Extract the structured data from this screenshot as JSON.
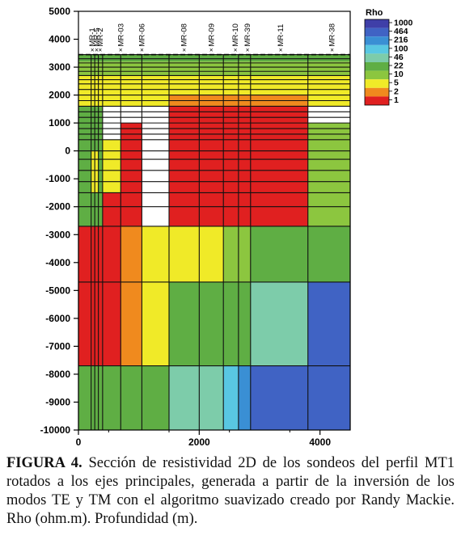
{
  "chart_data": {
    "type": "heatmap",
    "title": "",
    "xlabel": "",
    "ylabel": "",
    "xlim": [
      0,
      4500
    ],
    "ylim": [
      -10000,
      5000
    ],
    "x_ticks": [
      0,
      2000,
      4000
    ],
    "x_tick_labels": [
      "0",
      "2000",
      "4000"
    ],
    "y_ticks": [
      5000,
      4000,
      3000,
      2000,
      1000,
      0,
      -1000,
      -2000,
      -3000,
      -4000,
      -5000,
      -6000,
      -7000,
      -8000,
      -9000,
      -10000
    ],
    "y_tick_labels": [
      "5000",
      "4000",
      "3000",
      "2000",
      "1000",
      "0",
      "-1000",
      "-2000",
      "-3000",
      "-4000",
      "-5000",
      "-6000",
      "-7000",
      "-8000",
      "-9000",
      "-10000"
    ],
    "surface_elevation": 3450,
    "legend": {
      "title": "Rho",
      "position": "top-right",
      "labels": [
        "1000",
        "464",
        "216",
        "100",
        "46",
        "22",
        "10",
        "5",
        "2",
        "1"
      ],
      "colors": [
        "#3f3fa8",
        "#4063c4",
        "#3a8fd4",
        "#59c7e2",
        "#7dccaa",
        "#5fae44",
        "#8cc63f",
        "#f0ea28",
        "#f08a1e",
        "#e02020"
      ]
    },
    "stations": [
      {
        "name": "MR-1",
        "x": 230
      },
      {
        "name": "MR-5",
        "x": 300
      },
      {
        "name": "MR-2",
        "x": 360
      },
      {
        "name": "MR-03",
        "x": 700
      },
      {
        "name": "MR-06",
        "x": 1050
      },
      {
        "name": "MR-08",
        "x": 1750
      },
      {
        "name": "MR-09",
        "x": 2200
      },
      {
        "name": "MR-10",
        "x": 2600
      },
      {
        "name": "MR-39",
        "x": 2800
      },
      {
        "name": "MR-11",
        "x": 3350
      },
      {
        "name": "MR-38",
        "x": 4200
      }
    ],
    "column_edges": [
      0,
      210,
      270,
      330,
      400,
      700,
      1050,
      1500,
      2000,
      2400,
      2650,
      2850,
      3800,
      4500
    ],
    "row_edges": [
      3450,
      3300,
      3150,
      3000,
      2850,
      2700,
      2550,
      2400,
      2200,
      2000,
      1800,
      1600,
      1400,
      1200,
      1000,
      800,
      600,
      400,
      0,
      -300,
      -700,
      -1100,
      -1500,
      -2000,
      -2700,
      -4700,
      -7700,
      -10000
    ],
    "rho_zones": [
      {
        "x": [
          0,
          4500
        ],
        "y": [
          3200,
          3450
        ],
        "rho": 22
      },
      {
        "x": [
          0,
          4500
        ],
        "y": [
          2700,
          3200
        ],
        "rho": 10
      },
      {
        "x": [
          0,
          4500
        ],
        "y": [
          1600,
          2700
        ],
        "rho": 5
      },
      {
        "x": [
          1500,
          3800
        ],
        "y": [
          1600,
          2000
        ],
        "rho": 2
      },
      {
        "x": [
          1500,
          3800
        ],
        "y": [
          -2700,
          1600
        ],
        "rho": 1
      },
      {
        "x": [
          0,
          400
        ],
        "y": [
          -2700,
          1600
        ],
        "rho": 22
      },
      {
        "x": [
          210,
          330
        ],
        "y": [
          -1500,
          0
        ],
        "rho": 5
      },
      {
        "x": [
          400,
          700
        ],
        "y": [
          -1500,
          400
        ],
        "rho": 5
      },
      {
        "x": [
          400,
          1050
        ],
        "y": [
          -2700,
          -1500
        ],
        "rho": 1
      },
      {
        "x": [
          700,
          1050
        ],
        "y": [
          -1500,
          1000
        ],
        "rho": 1
      },
      {
        "x": [
          3800,
          4500
        ],
        "y": [
          -2700,
          1000
        ],
        "rho": 10
      },
      {
        "x": [
          0,
          700
        ],
        "y": [
          -7700,
          -2700
        ],
        "rho": 1
      },
      {
        "x": [
          700,
          1050
        ],
        "y": [
          -7700,
          -2700
        ],
        "rho": 2
      },
      {
        "x": [
          1050,
          1500
        ],
        "y": [
          -7700,
          -2700
        ],
        "rho": 5
      },
      {
        "x": [
          1500,
          2400
        ],
        "y": [
          -4700,
          -2700
        ],
        "rho": 5
      },
      {
        "x": [
          2400,
          2850
        ],
        "y": [
          -4700,
          -2700
        ],
        "rho": 10
      },
      {
        "x": [
          2850,
          4500
        ],
        "y": [
          -4700,
          -2700
        ],
        "rho": 22
      },
      {
        "x": [
          1500,
          2850
        ],
        "y": [
          -7700,
          -4700
        ],
        "rho": 22
      },
      {
        "x": [
          2850,
          3800
        ],
        "y": [
          -7700,
          -4700
        ],
        "rho": 46
      },
      {
        "x": [
          3800,
          4500
        ],
        "y": [
          -7700,
          -4700
        ],
        "rho": 464
      },
      {
        "x": [
          0,
          1500
        ],
        "y": [
          -10000,
          -7700
        ],
        "rho": 22
      },
      {
        "x": [
          1500,
          2400
        ],
        "y": [
          -10000,
          -7700
        ],
        "rho": 46
      },
      {
        "x": [
          2400,
          2650
        ],
        "y": [
          -10000,
          -7700
        ],
        "rho": 100
      },
      {
        "x": [
          2650,
          2850
        ],
        "y": [
          -10000,
          -7700
        ],
        "rho": 216
      },
      {
        "x": [
          2850,
          4500
        ],
        "y": [
          -10000,
          -7700
        ],
        "rho": 464
      }
    ]
  },
  "caption": {
    "label": "FIGURA 4.",
    "text": " Sección de resistividad 2D de los sondeos del perfil MT1 rotados a los ejes principales, generada a partir de la inversión de los modos TE y TM con el algoritmo suavizado creado por Randy Mackie. Rho (ohm.m). Profundidad (m)."
  }
}
